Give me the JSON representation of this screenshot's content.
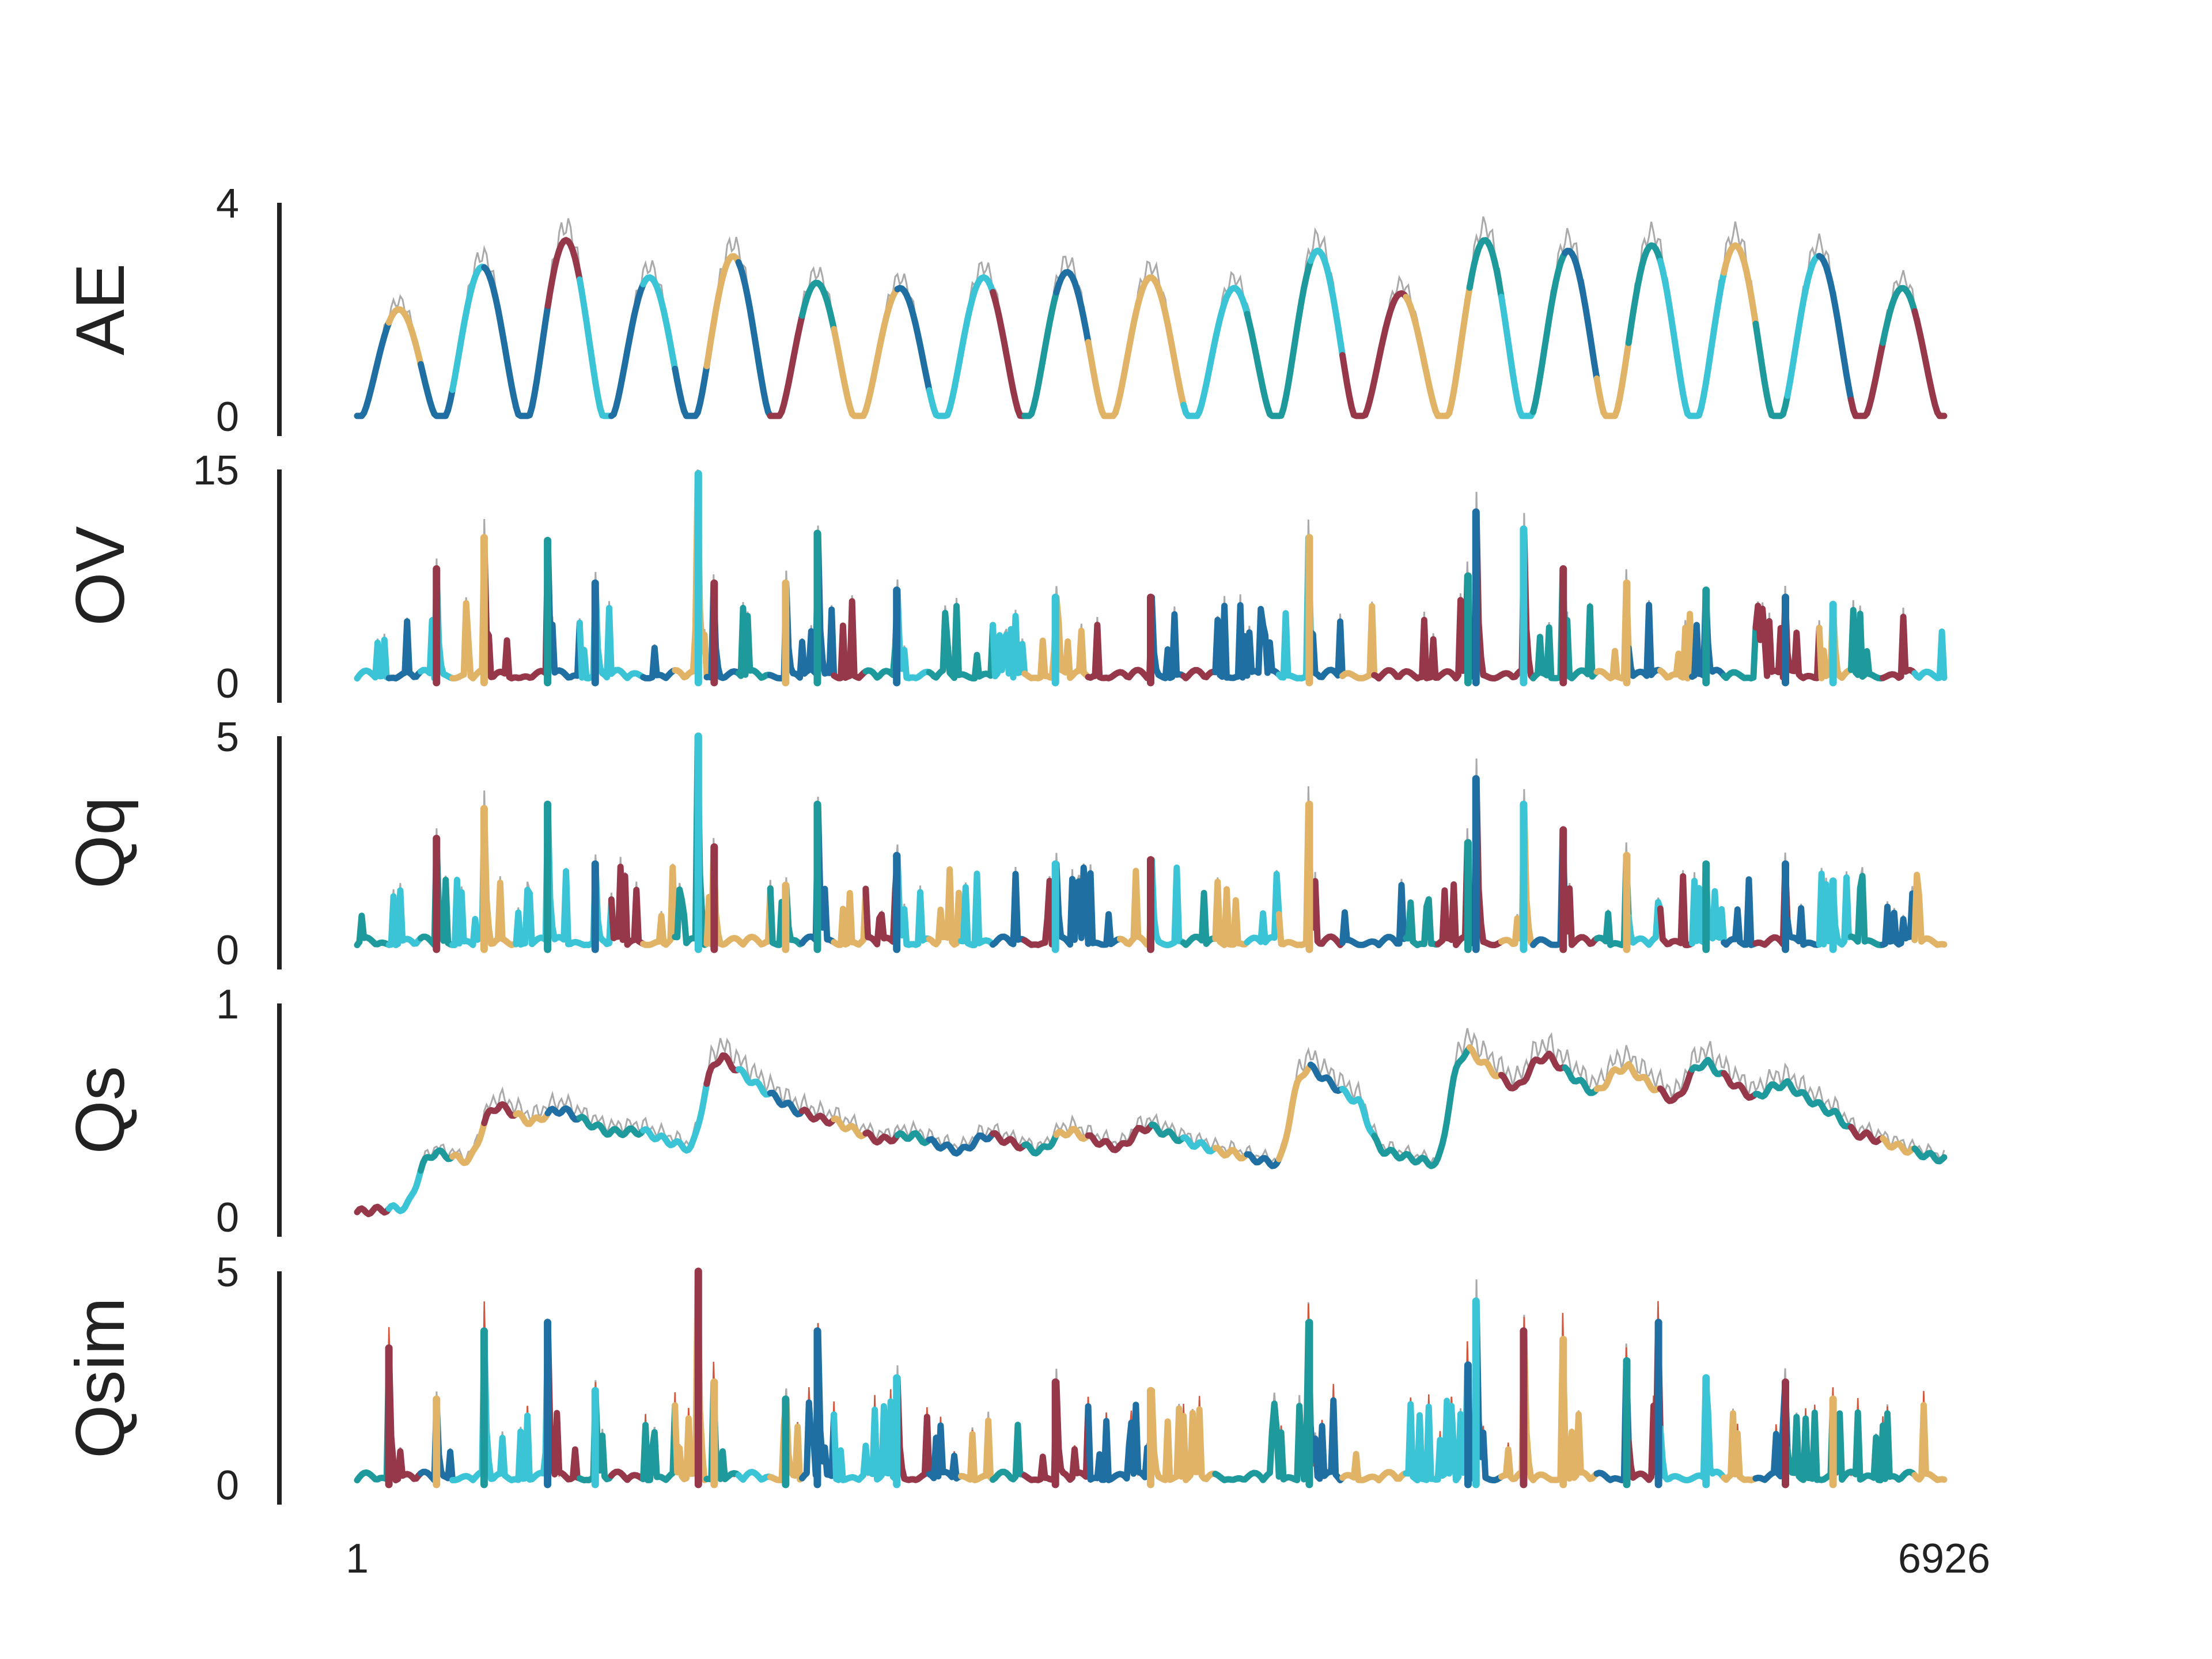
{
  "chart_data": {
    "type": "line",
    "x_range": [
      1,
      6926
    ],
    "x_tick_labels": [
      "1",
      "6926"
    ],
    "colors": {
      "regime_1": "#96384a",
      "regime_2": "#e0b366",
      "regime_3": "#1f9a9c",
      "regime_4": "#1f6fa3",
      "regime_5": "#3bc4d6",
      "observed_gray": "#aaaaaa",
      "simulated_red": "#d4553a"
    },
    "panels": [
      {
        "label": "AE",
        "ylim": [
          0,
          4
        ],
        "y_tick_labels": [
          "4",
          "0"
        ],
        "shape": "seasonal",
        "n_cycles": 19,
        "peaks": [
          2.0,
          2.8,
          3.3,
          2.6,
          3.0,
          2.5,
          2.4,
          2.6,
          2.7,
          2.6,
          2.4,
          3.1,
          2.3,
          3.3,
          3.1,
          3.2,
          3.2,
          3.0,
          2.4
        ]
      },
      {
        "label": "OV",
        "ylim": [
          0,
          15
        ],
        "y_tick_labels": [
          "15",
          "0"
        ],
        "shape": "spiky",
        "spikes": [
          [
            0.05,
            8.0
          ],
          [
            0.08,
            10.2
          ],
          [
            0.12,
            10.0
          ],
          [
            0.15,
            7.0
          ],
          [
            0.215,
            14.7
          ],
          [
            0.225,
            7.0
          ],
          [
            0.27,
            7.0
          ],
          [
            0.29,
            10.5
          ],
          [
            0.34,
            6.5
          ],
          [
            0.44,
            6.0
          ],
          [
            0.5,
            6.0
          ],
          [
            0.6,
            10.2
          ],
          [
            0.7,
            7.5
          ],
          [
            0.705,
            12.0
          ],
          [
            0.735,
            10.8
          ],
          [
            0.76,
            8.0
          ],
          [
            0.8,
            7.0
          ],
          [
            0.85,
            6.5
          ],
          [
            0.9,
            6.0
          ],
          [
            0.93,
            5.5
          ]
        ]
      },
      {
        "label": "Qq",
        "ylim": [
          0,
          5
        ],
        "y_tick_labels": [
          "5",
          "0"
        ],
        "shape": "spiky",
        "spikes": [
          [
            0.05,
            2.6
          ],
          [
            0.08,
            3.3
          ],
          [
            0.12,
            3.4
          ],
          [
            0.15,
            2.0
          ],
          [
            0.215,
            5.0
          ],
          [
            0.225,
            2.4
          ],
          [
            0.27,
            1.5
          ],
          [
            0.29,
            3.4
          ],
          [
            0.34,
            2.2
          ],
          [
            0.44,
            2.0
          ],
          [
            0.5,
            2.1
          ],
          [
            0.6,
            3.4
          ],
          [
            0.7,
            2.5
          ],
          [
            0.705,
            4.0
          ],
          [
            0.735,
            3.4
          ],
          [
            0.76,
            2.8
          ],
          [
            0.8,
            2.2
          ],
          [
            0.85,
            2.0
          ],
          [
            0.9,
            2.0
          ],
          [
            0.93,
            1.6
          ]
        ]
      },
      {
        "label": "Qs",
        "ylim": [
          0,
          1
        ],
        "y_tick_labels": [
          "1",
          "0"
        ],
        "shape": "recession",
        "peaks": [
          [
            0.05,
            0.3
          ],
          [
            0.09,
            0.52
          ],
          [
            0.13,
            0.5
          ],
          [
            0.18,
            0.4
          ],
          [
            0.23,
            0.75
          ],
          [
            0.3,
            0.45
          ],
          [
            0.35,
            0.38
          ],
          [
            0.4,
            0.38
          ],
          [
            0.45,
            0.4
          ],
          [
            0.5,
            0.42
          ],
          [
            0.55,
            0.3
          ],
          [
            0.6,
            0.7
          ],
          [
            0.65,
            0.3
          ],
          [
            0.7,
            0.78
          ],
          [
            0.75,
            0.75
          ],
          [
            0.8,
            0.7
          ],
          [
            0.85,
            0.72
          ],
          [
            0.9,
            0.62
          ],
          [
            0.95,
            0.38
          ]
        ]
      },
      {
        "label": "Qsim",
        "ylim": [
          0,
          5
        ],
        "y_tick_labels": [
          "5",
          "0"
        ],
        "shape": "spiky",
        "spikes": [
          [
            0.02,
            3.2
          ],
          [
            0.05,
            2.0
          ],
          [
            0.08,
            3.6
          ],
          [
            0.12,
            3.8
          ],
          [
            0.15,
            2.2
          ],
          [
            0.215,
            5.0
          ],
          [
            0.225,
            2.4
          ],
          [
            0.27,
            2.0
          ],
          [
            0.29,
            3.6
          ],
          [
            0.34,
            2.5
          ],
          [
            0.44,
            2.4
          ],
          [
            0.5,
            2.2
          ],
          [
            0.6,
            3.8
          ],
          [
            0.7,
            2.8
          ],
          [
            0.705,
            4.3
          ],
          [
            0.735,
            3.6
          ],
          [
            0.76,
            3.4
          ],
          [
            0.8,
            2.9
          ],
          [
            0.82,
            3.8
          ],
          [
            0.85,
            2.5
          ],
          [
            0.9,
            2.4
          ],
          [
            0.93,
            2.0
          ]
        ]
      }
    ]
  }
}
